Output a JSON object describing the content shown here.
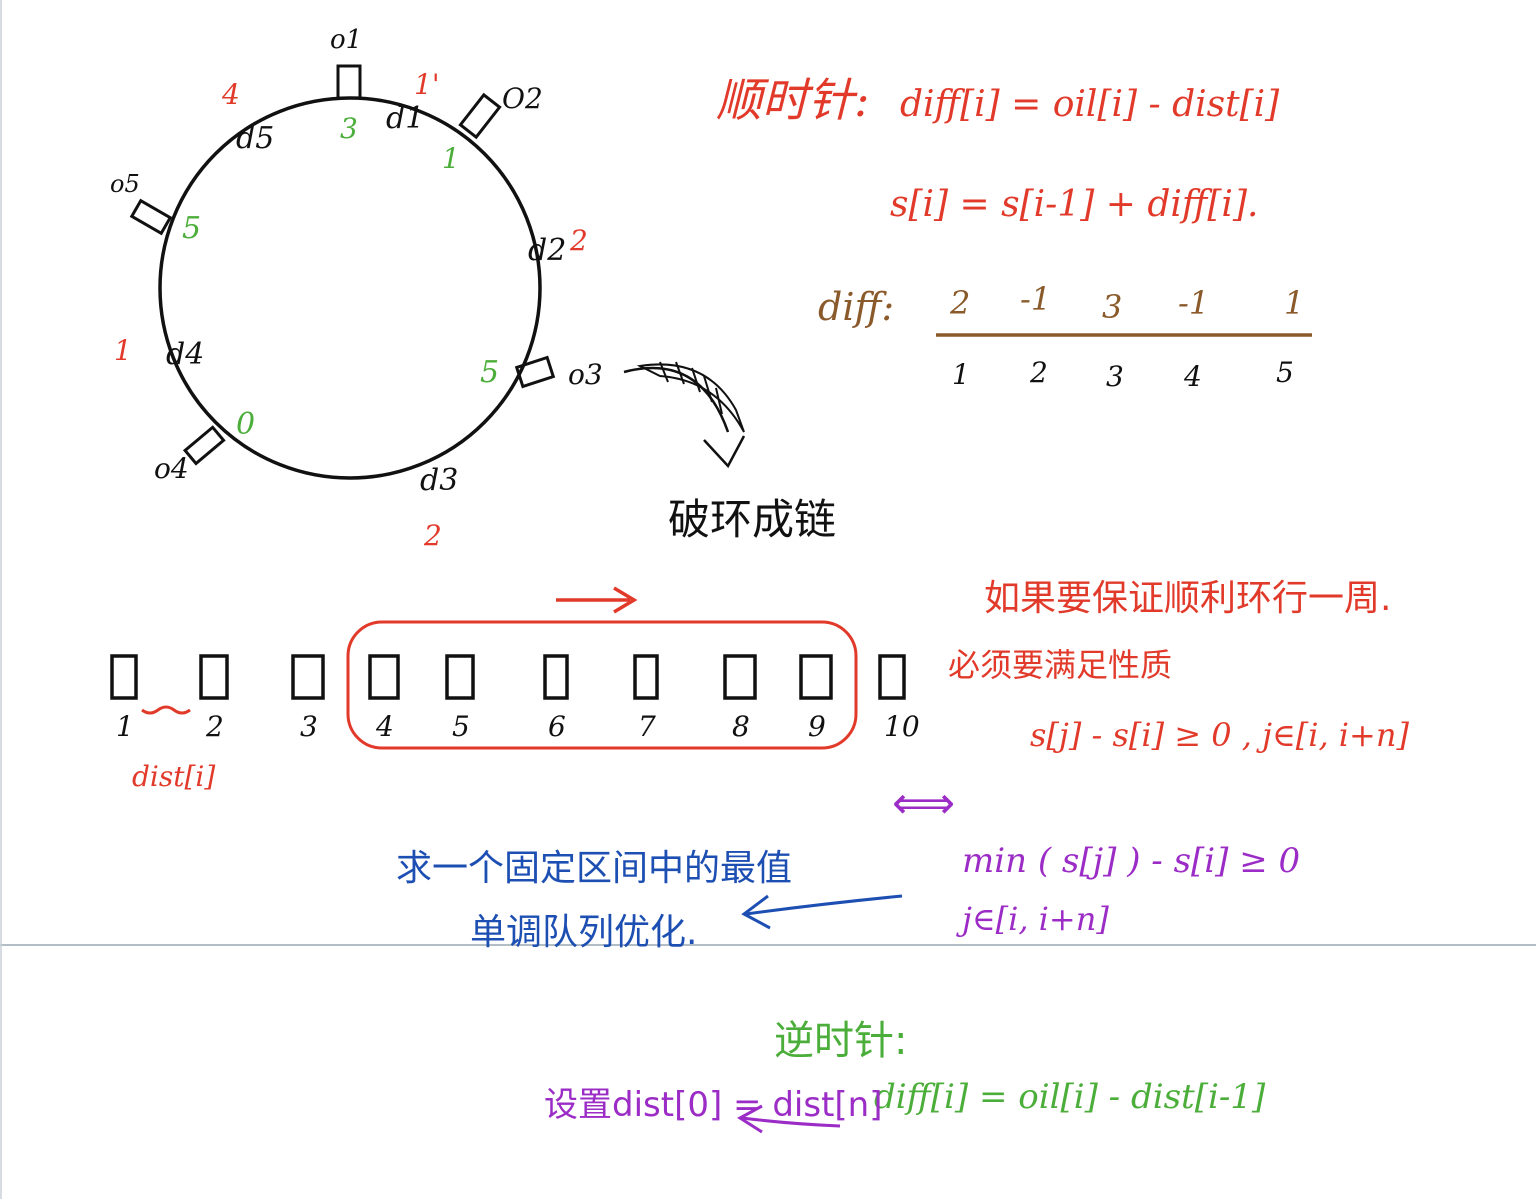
{
  "colors": {
    "red": "#e23a2a",
    "black": "#111111",
    "green": "#4cae3a",
    "brown": "#8a5a2b",
    "blue": "#1d4fb3",
    "purple": "#9b2cc6",
    "divider": "#9aa7b4"
  },
  "ring": {
    "stations": [
      {
        "oil_label": "o1",
        "dist_label": "d1",
        "red_note": "1'",
        "green_note": "3"
      },
      {
        "oil_label": "O2",
        "dist_label": "d2",
        "red_note": "2",
        "green_note": "1"
      },
      {
        "oil_label": "o3",
        "dist_label": "d3",
        "red_note": "2",
        "green_note": "5"
      },
      {
        "oil_label": "o4",
        "dist_label": "d4",
        "red_note": "1",
        "green_note": "0"
      },
      {
        "oil_label": "o5",
        "dist_label": "d5",
        "red_note": "4",
        "green_note": "5"
      }
    ],
    "break_text": "破环成链"
  },
  "clockwise": {
    "title": "顺时针:",
    "formula_diff": "diff[i] = oil[i] - dist[i]",
    "formula_s": "s[i] = s[i-1] + diff[i].",
    "diff_label": "diff:",
    "diff_values": [
      "2",
      "-1",
      "3",
      "-1",
      "1"
    ],
    "indices": [
      "1",
      "2",
      "3",
      "4",
      "5"
    ]
  },
  "chain": {
    "boxes": [
      "1",
      "2",
      "3",
      "4",
      "5",
      "6",
      "7",
      "8",
      "9",
      "10"
    ],
    "dist_label": "dist[i]"
  },
  "condition": {
    "line1": "如果要保证顺利环行一周.",
    "line2": "必须要满足性质",
    "line3": "s[j] - s[i] ≥ 0 , j∈[i, i+n]",
    "equiv": "⟺"
  },
  "min_expr": {
    "line1": "min ( s[j] ) - s[i] ≥ 0",
    "line2": "j∈[i, i+n]"
  },
  "note_blue": {
    "line1": "求一个固定区间中的最值",
    "line2": "单调队列优化."
  },
  "counterclockwise": {
    "title": "逆时针:",
    "formula": "diff[i] = oil[i] - dist[i-1]",
    "set_text": "设置dist[0] = dist[n]"
  }
}
